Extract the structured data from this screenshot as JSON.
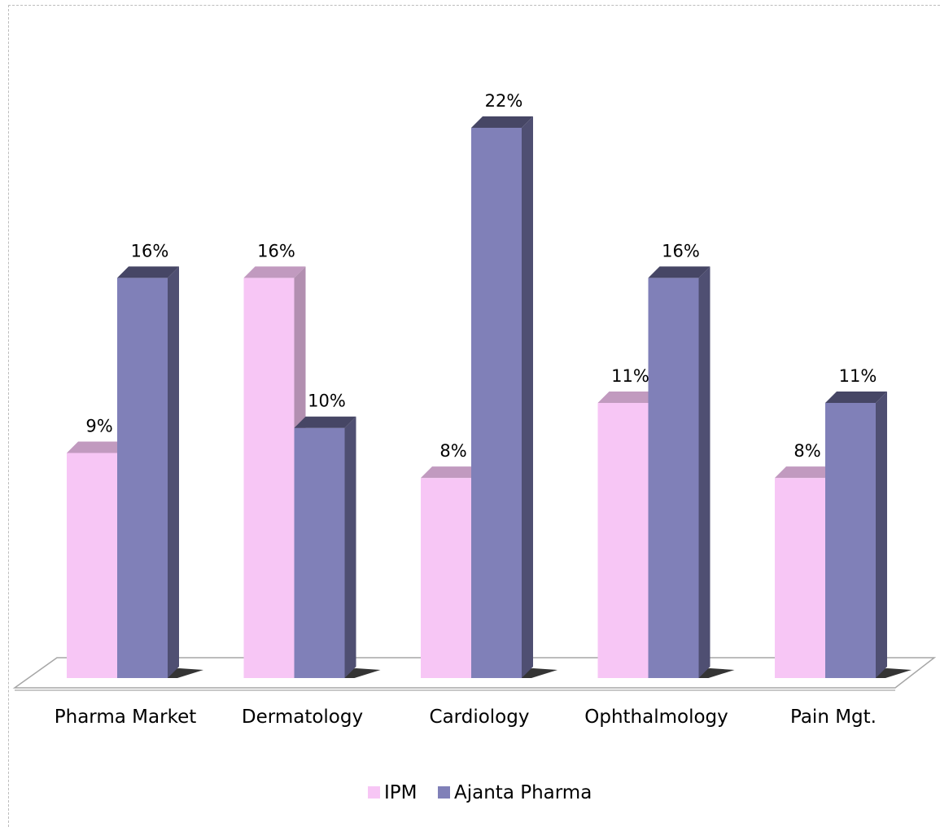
{
  "chart_data": {
    "type": "bar",
    "title": "",
    "xlabel": "",
    "ylabel": "",
    "categories": [
      "Pharma Market",
      "Dermatology",
      "Cardiology",
      "Ophthalmology",
      "Pain Mgt."
    ],
    "series": [
      {
        "name": "IPM",
        "values": [
          9,
          16,
          8,
          11,
          8
        ],
        "labels": [
          "9%",
          "16%",
          "8%",
          "11%",
          "8%"
        ],
        "color": "#f7c6f5"
      },
      {
        "name": "Ajanta Pharma",
        "values": [
          16,
          10,
          22,
          16,
          11
        ],
        "labels": [
          "16%",
          "10%",
          "22%",
          "16%",
          "11%"
        ],
        "color": "#8080b8"
      }
    ],
    "ylim": [
      0,
      22
    ],
    "grid": false,
    "legend": "bottom",
    "style": "3d-column"
  }
}
